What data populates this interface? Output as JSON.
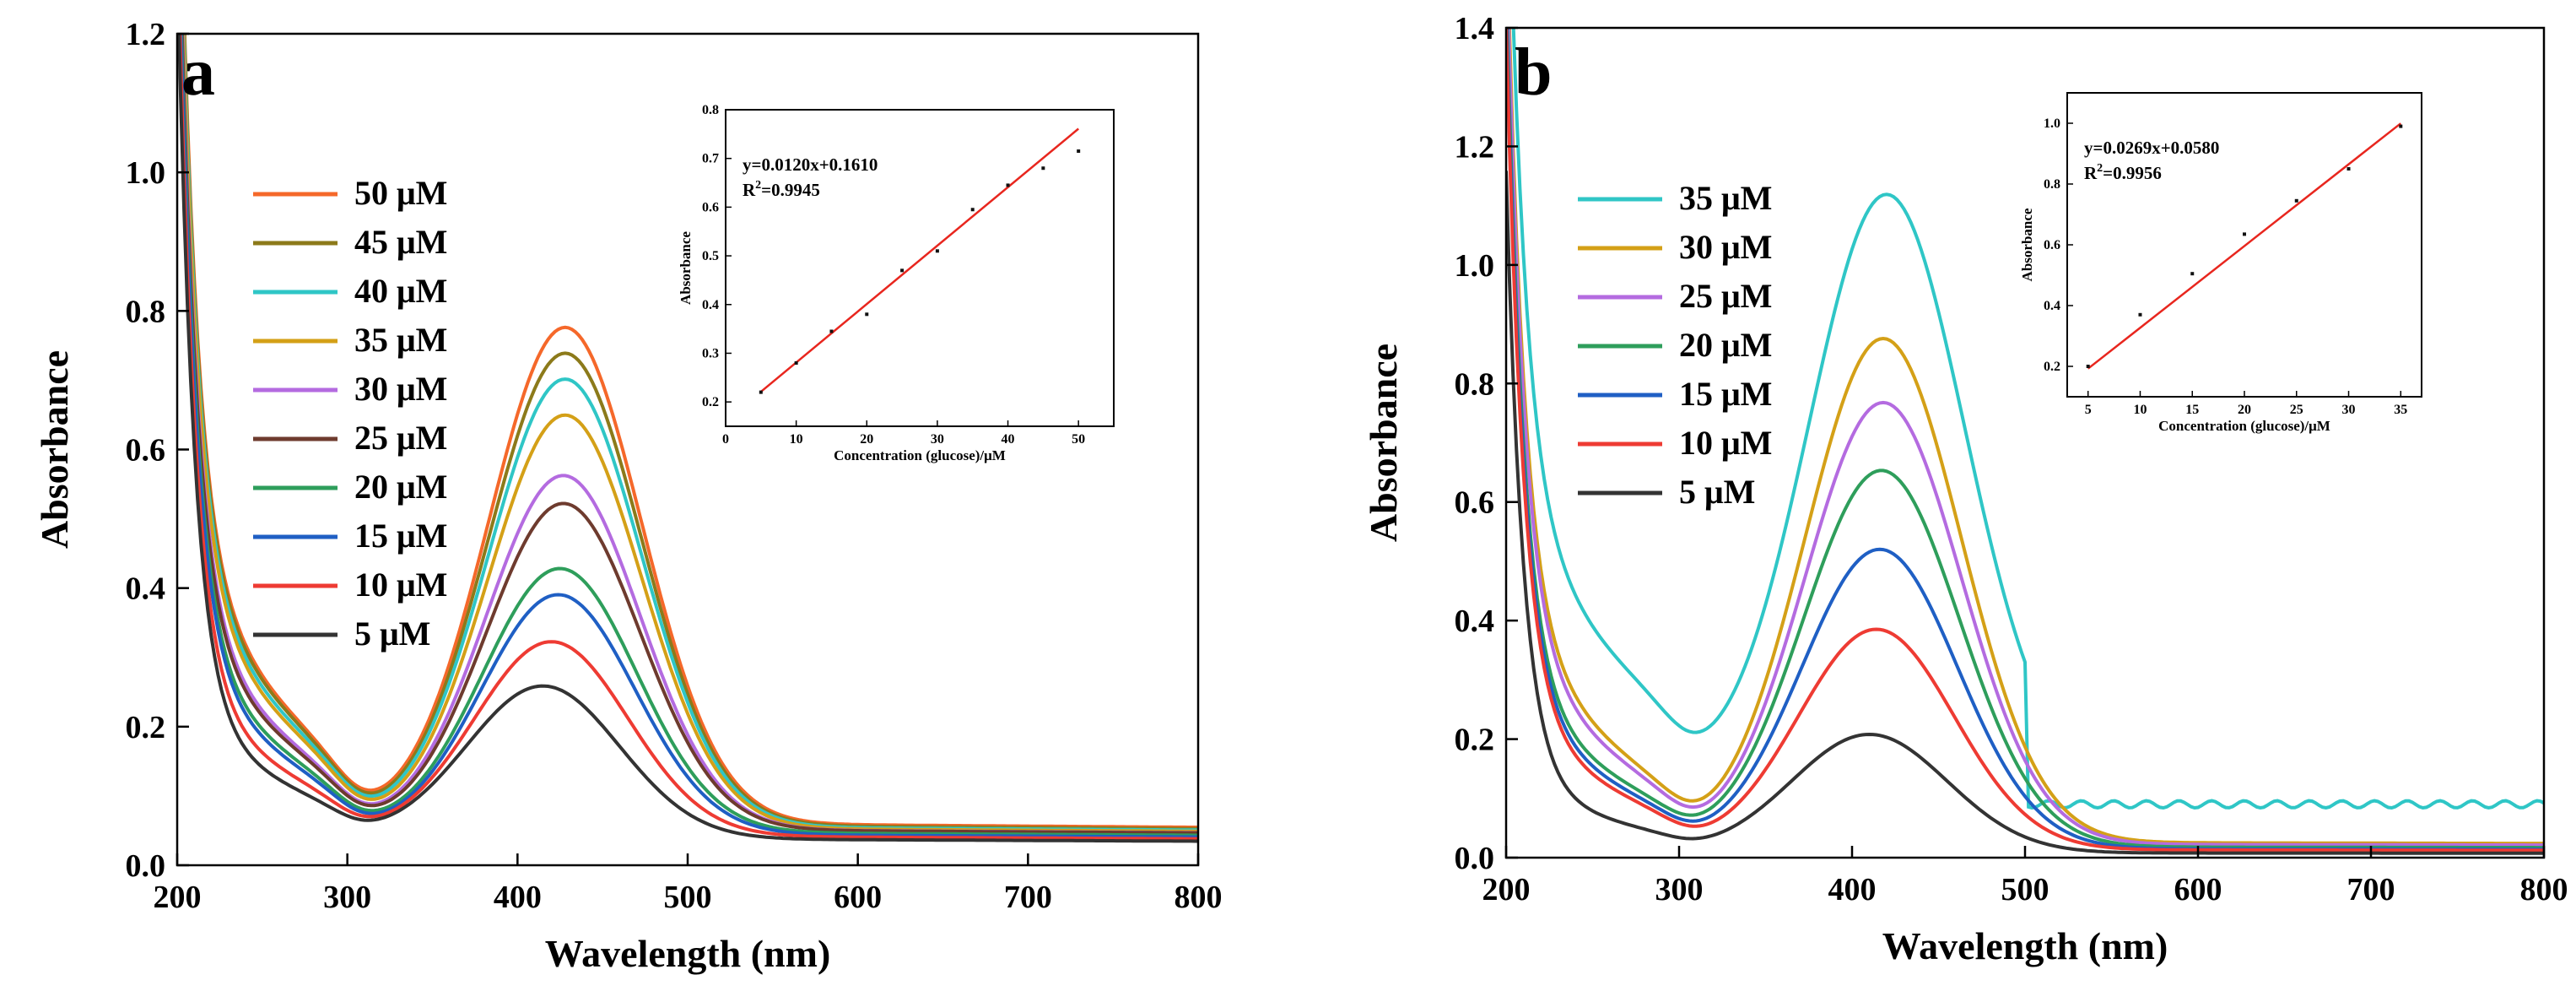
{
  "chart_data": [
    {
      "type": "line",
      "panel_label": "a",
      "xlabel": "Wavelength (nm)",
      "ylabel": "Absorbance",
      "xlim": [
        200,
        800
      ],
      "ylim": [
        0,
        1.2
      ],
      "xticks": [
        200,
        300,
        400,
        500,
        600,
        700,
        800
      ],
      "yticks": [
        0.0,
        0.2,
        0.4,
        0.6,
        0.8,
        1.0,
        1.2
      ],
      "y_decimals": 1,
      "legend_position": "left",
      "series": [
        {
          "name": "50 μM",
          "color": "#F5682A",
          "peak_wl": 428,
          "peak": 0.715,
          "shoulder": 0.27,
          "valley": 0.085,
          "tail": 0.042,
          "start": 1.15
        },
        {
          "name": "45 μM",
          "color": "#8C7A1A",
          "peak_wl": 428,
          "peak": 0.68,
          "shoulder": 0.265,
          "valley": 0.085,
          "tail": 0.04,
          "start": 1.14
        },
        {
          "name": "40 μM",
          "color": "#2FC6C6",
          "peak_wl": 428,
          "peak": 0.645,
          "shoulder": 0.255,
          "valley": 0.085,
          "tail": 0.038,
          "start": 1.14
        },
        {
          "name": "35 μM",
          "color": "#D4A017",
          "peak_wl": 428,
          "peak": 0.595,
          "shoulder": 0.245,
          "valley": 0.08,
          "tail": 0.037,
          "start": 1.13
        },
        {
          "name": "30 μM",
          "color": "#B46BE0",
          "peak_wl": 427,
          "peak": 0.51,
          "shoulder": 0.215,
          "valley": 0.08,
          "tail": 0.035,
          "start": 1.13
        },
        {
          "name": "25 μM",
          "color": "#6E3B2E",
          "peak_wl": 427,
          "peak": 0.47,
          "shoulder": 0.205,
          "valley": 0.078,
          "tail": 0.035,
          "start": 1.12
        },
        {
          "name": "20 μM",
          "color": "#2E9E5B",
          "peak_wl": 425,
          "peak": 0.38,
          "shoulder": 0.185,
          "valley": 0.075,
          "tail": 0.032,
          "start": 1.12
        },
        {
          "name": "15 μM",
          "color": "#1F5FC4",
          "peak_wl": 424,
          "peak": 0.345,
          "shoulder": 0.175,
          "valley": 0.072,
          "tail": 0.03,
          "start": 1.11
        },
        {
          "name": "10 μM",
          "color": "#EE3B33",
          "peak_wl": 420,
          "peak": 0.28,
          "shoulder": 0.148,
          "valley": 0.068,
          "tail": 0.028,
          "start": 1.1
        },
        {
          "name": "5 μM",
          "color": "#333333",
          "peak_wl": 415,
          "peak": 0.22,
          "shoulder": 0.125,
          "valley": 0.065,
          "tail": 0.025,
          "start": 1.08
        }
      ],
      "inset": {
        "xlabel": "Concentration (glucose)/μM",
        "ylabel": "Absorbance",
        "xlim": [
          0,
          55
        ],
        "ylim": [
          0.15,
          0.8
        ],
        "xticks": [
          0,
          10,
          20,
          30,
          40,
          50
        ],
        "yticks": [
          0.2,
          0.3,
          0.4,
          0.5,
          0.6,
          0.7,
          0.8
        ],
        "y_decimals": 1,
        "points_x": [
          5,
          10,
          15,
          20,
          25,
          30,
          35,
          40,
          45,
          50
        ],
        "points_y": [
          0.22,
          0.28,
          0.345,
          0.38,
          0.47,
          0.51,
          0.595,
          0.645,
          0.68,
          0.715
        ],
        "fit": {
          "slope": 0.012,
          "intercept": 0.161,
          "x_range": [
            5,
            50
          ]
        },
        "fit_color": "#E8261E",
        "equation": "y=0.0120x+0.1610",
        "r2_prefix": "R",
        "r2_sup": "2",
        "r2_value": "=0.9945"
      }
    },
    {
      "type": "line",
      "panel_label": "b",
      "xlabel": "Wavelength (nm)",
      "ylabel": "Absorbance",
      "xlim": [
        200,
        800
      ],
      "ylim": [
        0,
        1.4
      ],
      "xticks": [
        200,
        300,
        400,
        500,
        600,
        700,
        800
      ],
      "yticks": [
        0.0,
        0.2,
        0.4,
        0.6,
        0.8,
        1.0,
        1.2,
        1.4
      ],
      "y_decimals": 1,
      "legend_position": "left",
      "series": [
        {
          "name": "35 μM",
          "color": "#2FC6C6",
          "peak_wl": 420,
          "peak": 0.99,
          "shoulder": 0.33,
          "valley": 0.165,
          "tail": 0.09,
          "start": 1.2
        },
        {
          "name": "30 μM",
          "color": "#D4A017",
          "peak_wl": 418,
          "peak": 0.85,
          "shoulder": 0.26,
          "valley": 0.08,
          "tail": 0.012,
          "start": 1.19
        },
        {
          "name": "25 μM",
          "color": "#B46BE0",
          "peak_wl": 418,
          "peak": 0.745,
          "shoulder": 0.24,
          "valley": 0.075,
          "tail": 0.01,
          "start": 1.18
        },
        {
          "name": "20 μM",
          "color": "#2E9E5B",
          "peak_wl": 417,
          "peak": 0.635,
          "shoulder": 0.19,
          "valley": 0.06,
          "tail": 0.008,
          "start": 1.17
        },
        {
          "name": "15 μM",
          "color": "#1F5FC4",
          "peak_wl": 416,
          "peak": 0.505,
          "shoulder": 0.175,
          "valley": 0.055,
          "tail": 0.006,
          "start": 1.16
        },
        {
          "name": "10 μM",
          "color": "#EE3B33",
          "peak_wl": 414,
          "peak": 0.372,
          "shoulder": 0.16,
          "valley": 0.05,
          "tail": 0.005,
          "start": 1.15
        },
        {
          "name": "5 μM",
          "color": "#333333",
          "peak_wl": 410,
          "peak": 0.2,
          "shoulder": 0.085,
          "valley": 0.03,
          "tail": 0.003,
          "start": 1.02
        }
      ],
      "inset": {
        "xlabel": "Concentration (glucose)/μM",
        "ylabel": "Absorbance",
        "xlim": [
          3,
          37
        ],
        "ylim": [
          0.1,
          1.1
        ],
        "xticks": [
          5,
          10,
          15,
          20,
          25,
          30,
          35
        ],
        "yticks": [
          0.2,
          0.4,
          0.6,
          0.8,
          1.0
        ],
        "y_decimals": 1,
        "points_x": [
          5,
          10,
          15,
          20,
          25,
          30,
          35
        ],
        "points_y": [
          0.2,
          0.37,
          0.505,
          0.635,
          0.745,
          0.85,
          0.99
        ],
        "fit": {
          "slope": 0.0269,
          "intercept": 0.058,
          "x_range": [
            5,
            35
          ]
        },
        "fit_color": "#E8261E",
        "equation": "y=0.0269x+0.0580",
        "r2_prefix": "R",
        "r2_sup": "2",
        "r2_value": "=0.9956"
      }
    }
  ]
}
